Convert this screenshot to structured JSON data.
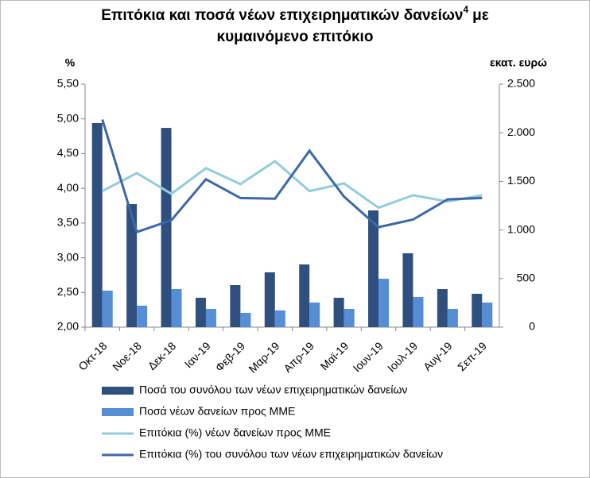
{
  "chart_data": {
    "type": "bar-line",
    "title": [
      "Επιτόκια και ποσά νέων επιχειρηματικών δανείων",
      "4",
      "με",
      "κυμαινόμενο επιτόκιο"
    ],
    "y_label": "%",
    "y2_label": "εκατ. ευρώ",
    "categories": [
      "Οκτ-18",
      "Νοε-18",
      "Δεκ-18",
      "Ιαν-19",
      "Φεβ-19",
      "Μαρ-19",
      "Απρ-19",
      "Μαϊ-19",
      "Ιουν-19",
      "Ιουλ-19",
      "Αυγ-19",
      "Σεπ-19"
    ],
    "series": [
      {
        "name": "Ποσά του συνόλου των νέων επιχειρηματικών δανείων",
        "color": "#2f4f7f",
        "kind": "bar",
        "axis": "y2",
        "values": [
          2100,
          1266,
          2050,
          302,
          433,
          564,
          645,
          302,
          1201,
          760,
          392,
          343
        ]
      },
      {
        "name": "Ποσά νέων δανείων προς ΜΜΕ",
        "color": "#558ed5",
        "kind": "bar",
        "axis": "y2",
        "values": [
          376,
          221,
          392,
          188,
          147,
          172,
          253,
          188,
          498,
          310,
          188,
          253
        ]
      },
      {
        "name": "Επιτόκια (%) νέων δανείων προς ΜΜΕ",
        "color": "#93cddd",
        "kind": "line",
        "values": [
          3.96,
          4.22,
          3.92,
          4.29,
          4.06,
          4.39,
          3.96,
          4.07,
          3.72,
          3.9,
          3.81,
          3.9
        ]
      },
      {
        "name": "Επιτόκια (%) του συνόλου των νέων επιχειρηματικών δανείων",
        "color": "#3d68a8",
        "kind": "line",
        "values": [
          4.99,
          3.37,
          3.54,
          4.13,
          3.86,
          3.85,
          4.54,
          3.88,
          3.44,
          3.55,
          3.84,
          3.86
        ]
      }
    ],
    "ylim": [
      2.0,
      5.5
    ],
    "yticks": [
      {
        "value": 2.0,
        "label": "2,00"
      },
      {
        "value": 2.5,
        "label": "2,50"
      },
      {
        "value": 3.0,
        "label": "3,00"
      },
      {
        "value": 3.5,
        "label": "3,50"
      },
      {
        "value": 4.0,
        "label": "4,00"
      },
      {
        "value": 4.5,
        "label": "4,50"
      },
      {
        "value": 5.0,
        "label": "5,00"
      },
      {
        "value": 5.5,
        "label": "5,50"
      }
    ],
    "y2lim": [
      0,
      2500
    ],
    "y2ticks": [
      0,
      500,
      {
        "value": 1000,
        "label": "1.000"
      },
      {
        "value": 1500,
        "label": "1.500"
      },
      {
        "value": 2000,
        "label": "2.000"
      },
      {
        "value": 2500,
        "label": "2.500"
      }
    ]
  }
}
